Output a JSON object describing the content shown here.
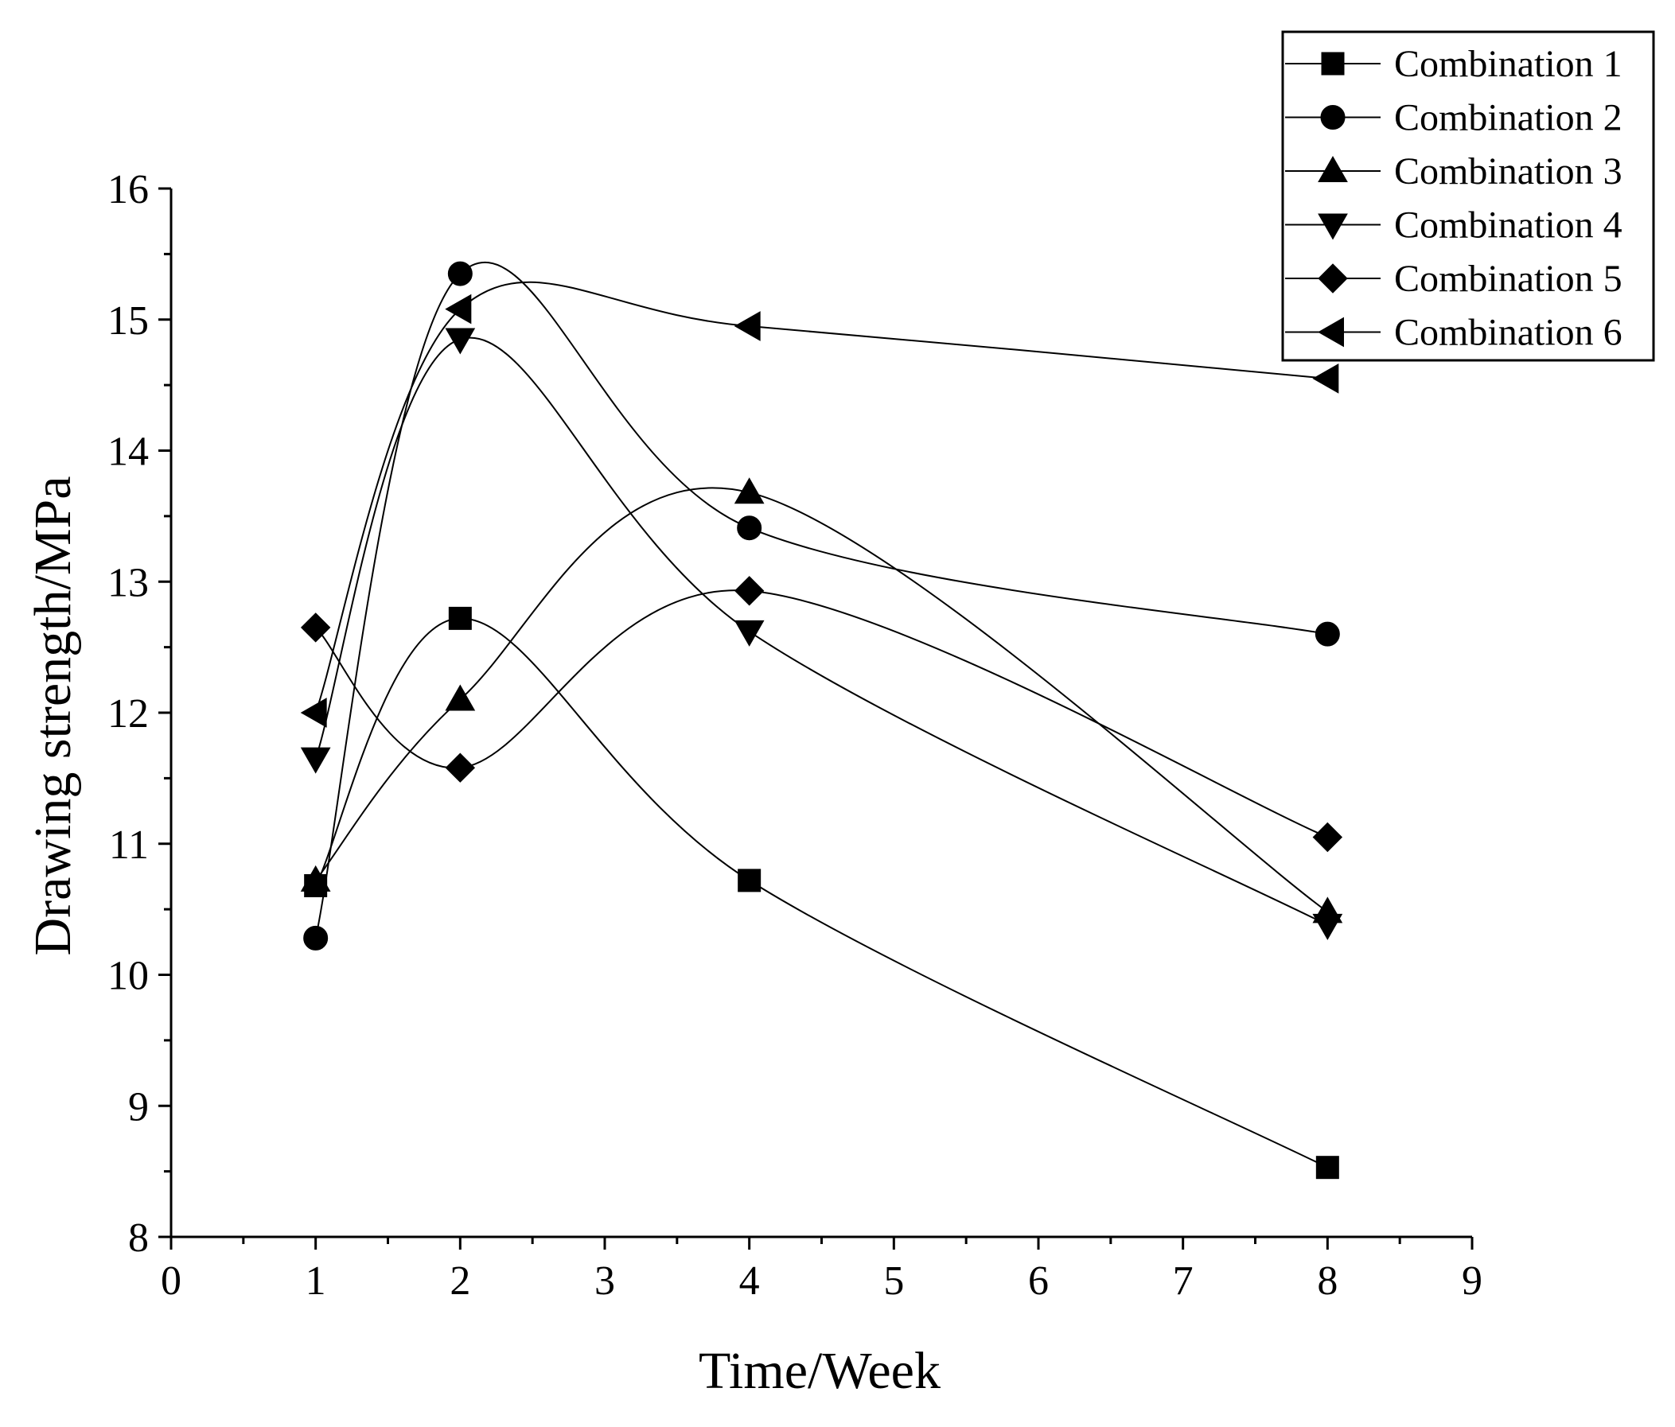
{
  "chart_data": {
    "type": "line",
    "title": "",
    "xlabel": "Time/Week",
    "ylabel": "Drawing strength/MPa",
    "xlim": [
      0,
      9
    ],
    "ylim": [
      8,
      16
    ],
    "x_ticks": [
      0,
      1,
      2,
      3,
      4,
      5,
      6,
      7,
      8,
      9
    ],
    "y_ticks": [
      8,
      9,
      10,
      11,
      12,
      13,
      14,
      15,
      16
    ],
    "x_tick_labels": [
      "0",
      "1",
      "2",
      "3",
      "4",
      "5",
      "6",
      "7",
      "8",
      "9"
    ],
    "y_tick_labels": [
      "8",
      "9",
      "10",
      "11",
      "12",
      "13",
      "14",
      "15",
      "16"
    ],
    "grid": false,
    "legend_position": "top-right",
    "x": [
      1,
      2,
      4,
      8
    ],
    "series": [
      {
        "name": "Combination 1",
        "marker": "square",
        "values": [
          10.68,
          12.72,
          10.72,
          8.53
        ]
      },
      {
        "name": "Combination 2",
        "marker": "circle",
        "values": [
          10.28,
          15.35,
          13.41,
          12.6
        ]
      },
      {
        "name": "Combination 3",
        "marker": "triangle-up",
        "values": [
          10.72,
          12.1,
          13.68,
          10.48
        ]
      },
      {
        "name": "Combination 4",
        "marker": "triangle-down",
        "values": [
          11.65,
          14.85,
          12.62,
          10.38
        ]
      },
      {
        "name": "Combination 5",
        "marker": "diamond",
        "values": [
          12.65,
          11.58,
          12.93,
          11.05
        ]
      },
      {
        "name": "Combination 6",
        "marker": "triangle-left",
        "values": [
          12.0,
          15.08,
          14.95,
          14.55
        ]
      }
    ],
    "colors": {
      "line": "#000000",
      "marker": "#000000",
      "background": "#ffffff"
    }
  }
}
